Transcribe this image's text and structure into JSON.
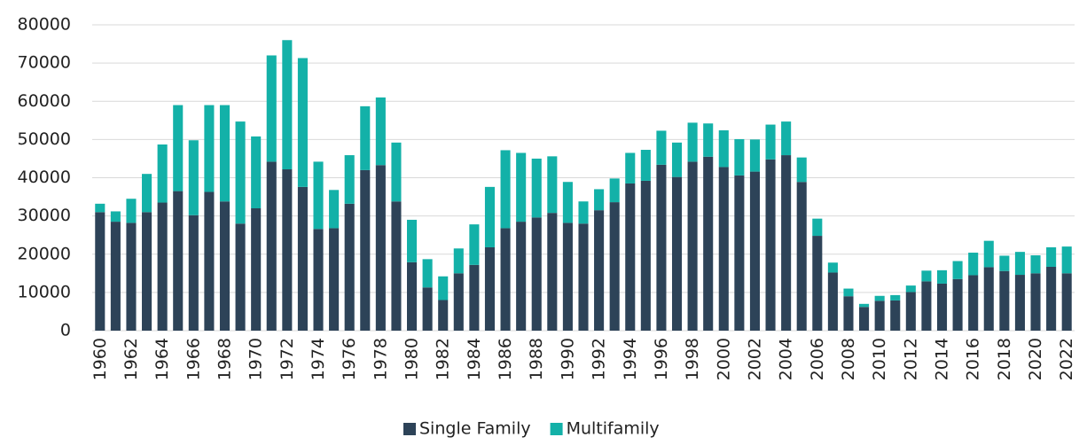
{
  "chart_data": {
    "type": "stacked_bar",
    "categories": [
      "1960",
      null,
      "1962",
      null,
      "1964",
      null,
      "1966",
      null,
      "1968",
      null,
      "1970",
      null,
      "1972",
      null,
      "1974",
      null,
      "1976",
      null,
      "1978",
      null,
      "1980",
      null,
      "1982",
      null,
      "1984",
      null,
      "1986",
      null,
      "1988",
      null,
      "1990",
      null,
      "1992",
      null,
      "1994",
      null,
      "1996",
      null,
      "1998",
      null,
      "2000",
      null,
      "2002",
      null,
      "2004",
      null,
      "2006",
      null,
      "2008",
      null,
      "2010",
      null,
      "2012",
      null,
      "2014",
      null,
      "2016",
      null,
      "2018",
      null,
      "2020",
      null,
      "2022"
    ],
    "series": [
      {
        "name": "Single Family",
        "color": "#2d4358",
        "values": [
          31000,
          28500,
          28200,
          31000,
          33500,
          36500,
          30200,
          36300,
          33800,
          28000,
          32000,
          44200,
          42200,
          37600,
          26600,
          26800,
          33200,
          42000,
          43300,
          33800,
          17900,
          11300,
          8000,
          15000,
          17200,
          21800,
          26800,
          28500,
          29600,
          30800,
          28200,
          28000,
          31500,
          33600,
          38500,
          39200,
          43400,
          40200,
          44200,
          45500,
          42800,
          40600,
          41600,
          44800,
          45900,
          38900,
          24800,
          15200,
          9000,
          6200,
          7800,
          7900,
          10100,
          12900,
          12300,
          13500,
          14500,
          16600,
          15600,
          14600,
          15000,
          16700,
          15000
        ]
      },
      {
        "name": "Multifamily",
        "color": "#13b1a8",
        "values": [
          2200,
          2700,
          6300,
          10000,
          15200,
          22500,
          19600,
          22700,
          25200,
          26700,
          18800,
          27800,
          33800,
          33700,
          17600,
          10000,
          12700,
          16700,
          17700,
          15400,
          11100,
          7400,
          6200,
          6500,
          10600,
          15800,
          20400,
          18000,
          15400,
          14800,
          10700,
          5800,
          5500,
          6200,
          8000,
          8100,
          8900,
          9000,
          10200,
          8700,
          9600,
          9500,
          8400,
          9100,
          8800,
          6400,
          4500,
          2600,
          2000,
          800,
          1300,
          1400,
          1700,
          2800,
          3500,
          4700,
          5900,
          6900,
          4000,
          6000,
          4700,
          5100,
          7000
        ]
      }
    ],
    "ylim": [
      0,
      80000
    ],
    "yticks": [
      0,
      10000,
      20000,
      30000,
      40000,
      50000,
      60000,
      70000,
      80000
    ],
    "grid": true,
    "legend": "bottom"
  }
}
